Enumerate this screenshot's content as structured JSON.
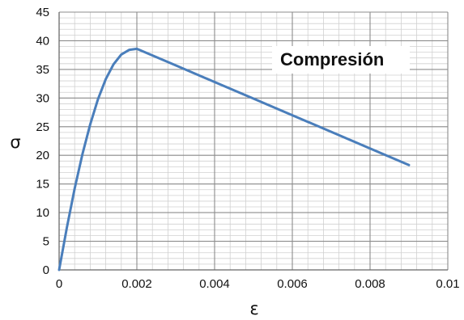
{
  "chart_data": {
    "type": "line",
    "title": "",
    "xlabel": "ε",
    "ylabel": "σ",
    "xlim": [
      0,
      0.01
    ],
    "ylim": [
      0,
      45
    ],
    "x_ticks": [
      0,
      0.002,
      0.004,
      0.006,
      0.008,
      0.01
    ],
    "x_tick_labels": [
      "0",
      "0.002",
      "0.004",
      "0.006",
      "0.008",
      "0.01"
    ],
    "y_ticks": [
      0,
      5,
      10,
      15,
      20,
      25,
      30,
      35,
      40,
      45
    ],
    "y_tick_labels": [
      "0",
      "5",
      "10",
      "15",
      "20",
      "25",
      "30",
      "35",
      "40",
      "45"
    ],
    "grid": true,
    "annotation": "Compresión",
    "series_color": "#4a7ebb",
    "series": [
      {
        "x": [
          0,
          0.0002,
          0.0004,
          0.0006,
          0.0008,
          0.001,
          0.0012,
          0.0014,
          0.0016,
          0.0018,
          0.002,
          0.003,
          0.004,
          0.005,
          0.006,
          0.007,
          0.008,
          0.009
        ],
        "y": [
          0,
          7.4,
          14.2,
          20.2,
          25.4,
          29.8,
          33.3,
          35.9,
          37.6,
          38.4,
          38.6,
          35.7,
          32.8,
          29.9,
          27.0,
          24.1,
          21.2,
          18.3
        ]
      }
    ]
  }
}
